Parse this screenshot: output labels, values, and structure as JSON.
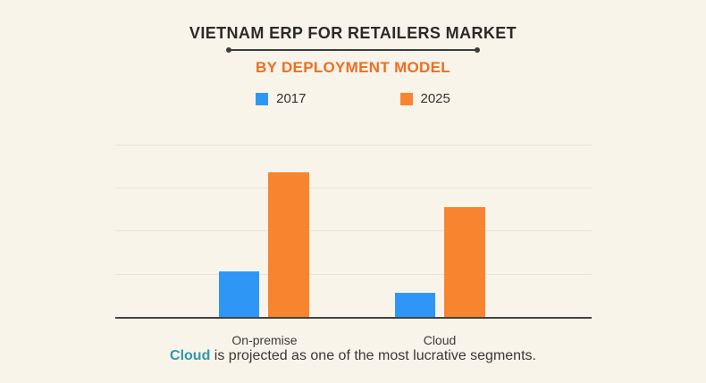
{
  "header": {
    "title": "VIETNAM ERP FOR RETAILERS MARKET",
    "subtitle": "BY DEPLOYMENT MODEL"
  },
  "legend": [
    {
      "label": "2017",
      "color": "#2e97f5"
    },
    {
      "label": "2025",
      "color": "#f9842f"
    }
  ],
  "chart_data": {
    "type": "bar",
    "title": "VIETNAM ERP FOR RETAILERS MARKET",
    "subtitle": "BY DEPLOYMENT MODEL",
    "categories": [
      "On-premise",
      "Cloud"
    ],
    "series": [
      {
        "name": "2017",
        "color": "#2e97f5",
        "values": [
          1.05,
          0.55
        ]
      },
      {
        "name": "2025",
        "color": "#f9842f",
        "values": [
          3.35,
          2.55
        ]
      }
    ],
    "xlabel": "",
    "ylabel": "",
    "ylim": [
      0,
      4
    ],
    "y_tick_labels_visible": false,
    "gridlines": "horizontal, 4 light lines above baseline",
    "legend_position": "top-center",
    "note": "No numeric axis labels shown; values estimated in gridline units (1 gridline interval = 1 unit)"
  },
  "caption": {
    "highlight": "Cloud",
    "rest": " is projected as one of the most lucrative segments.",
    "highlight_color": "#2e98aa"
  },
  "colors": {
    "background": "#f9f4ea",
    "title_text": "#2b2a27",
    "subtitle_text": "#ee6e20",
    "gridline": "#e8e4da",
    "axis_line": "#45433f",
    "caption_text": "#3a3833"
  }
}
